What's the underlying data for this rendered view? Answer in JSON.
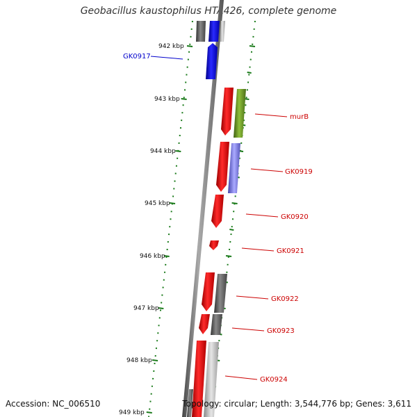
{
  "title": "Geobacillus kaustophilus HTA426, complete genome",
  "footer": {
    "accession": "Accession: NC_006510",
    "topology": "Topology: circular; Length: 3,544,776 bp; Genes: 3,611"
  },
  "colors": {
    "ruler_tick": "#1a7a1a",
    "gene_red": "#e8000b",
    "gene_blue": "#0000dd",
    "gene_gray": "#666666",
    "gene_olive": "#6b8e23",
    "gene_lavender": "#7777dd",
    "label_red": "#cc0000",
    "label_blue": "#0000cc"
  },
  "ruler": [
    {
      "label": "942 kbp"
    },
    {
      "label": "943 kbp"
    },
    {
      "label": "944 kbp"
    },
    {
      "label": "945 kbp"
    },
    {
      "label": "946 kbp"
    },
    {
      "label": "947 kbp"
    },
    {
      "label": "948 kbp"
    },
    {
      "label": "949 kbp"
    }
  ],
  "gene_labels": [
    {
      "name": "GK0917"
    },
    {
      "name": "murB"
    },
    {
      "name": "GK0919"
    },
    {
      "name": "GK0920"
    },
    {
      "name": "GK0921"
    },
    {
      "name": "GK0922"
    },
    {
      "name": "GK0923"
    },
    {
      "name": "GK0924"
    }
  ]
}
